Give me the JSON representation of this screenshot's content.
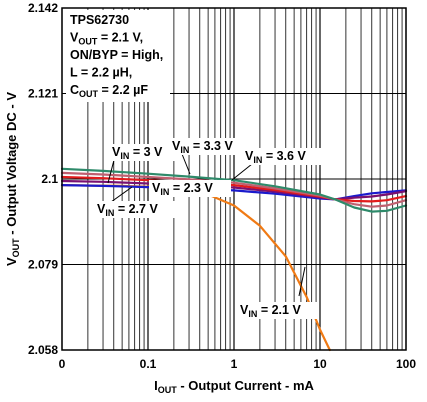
{
  "chart_data": {
    "type": "line",
    "x_scale": "log",
    "xlabel_main": "I",
    "xlabel_sub": "OUT",
    "xlabel_rest": " - Output Current - mA",
    "ylabel_main": "V",
    "ylabel_sub": "OUT",
    "ylabel_rest": " - Output Voltage DC - V",
    "xlim": [
      0.01,
      100
    ],
    "ylim": [
      2.058,
      2.142
    ],
    "x_tick_labels": [
      "0",
      "0.1",
      "1",
      "10",
      "100"
    ],
    "y_tick_labels": [
      "2.058",
      "2.079",
      "2.1",
      "2.121",
      "2.142"
    ],
    "grid": true,
    "conditions": [
      {
        "main": "TPS62730",
        "sub": "",
        "rest": ""
      },
      {
        "main": "V",
        "sub": "OUT",
        "rest": " = 2.1 V,"
      },
      {
        "main": "ON/BYP = High,",
        "sub": "",
        "rest": ""
      },
      {
        "main": "L = 2.2 µH,",
        "sub": "",
        "rest": ""
      },
      {
        "main": "C",
        "sub": "OUT",
        "rest": " = 2.2 µF"
      }
    ],
    "series": [
      {
        "name_main": "V",
        "name_sub": "IN",
        "name_rest": " = 2.1 V",
        "color": "#f07a14",
        "x": [
          0.01,
          0.02,
          0.05,
          0.1,
          0.2,
          0.5,
          1,
          2,
          4,
          7,
          10,
          13
        ],
        "y": [
          2.0985,
          2.0984,
          2.0983,
          2.0981,
          2.0976,
          2.0962,
          2.0935,
          2.0885,
          2.081,
          2.071,
          2.063,
          2.058
        ]
      },
      {
        "name_main": "V",
        "name_sub": "IN",
        "name_rest": " = 2.3 V",
        "color": "#1a1acc",
        "x": [
          0.01,
          0.03,
          0.1,
          0.3,
          1,
          3,
          10,
          15,
          25,
          40,
          60,
          100
        ],
        "y": [
          2.0985,
          2.0983,
          2.098,
          2.0977,
          2.0972,
          2.0964,
          2.0952,
          2.095,
          2.0958,
          2.0965,
          2.0968,
          2.0972
        ]
      },
      {
        "name_main": "V",
        "name_sub": "IN",
        "name_rest": " = 2.7 V",
        "color": "#7a1070",
        "x": [
          0.01,
          0.03,
          0.1,
          0.3,
          1,
          3,
          10,
          15,
          25,
          40,
          60,
          100
        ],
        "y": [
          2.0995,
          2.0993,
          2.0989,
          2.0985,
          2.0979,
          2.0969,
          2.0955,
          2.095,
          2.0954,
          2.0957,
          2.0962,
          2.097
        ]
      },
      {
        "name_main": "V",
        "name_sub": "IN",
        "name_rest": " = 3 V",
        "color": "#e21c1c",
        "x": [
          0.01,
          0.03,
          0.1,
          0.3,
          1,
          3,
          10,
          15,
          25,
          40,
          60,
          100
        ],
        "y": [
          2.1005,
          2.1002,
          2.0997,
          2.0992,
          2.0985,
          2.0973,
          2.0957,
          2.095,
          2.0946,
          2.0945,
          2.0948,
          2.0958
        ]
      },
      {
        "name_main": "V",
        "name_sub": "IN",
        "name_rest": " = 3.3 V",
        "color": "#c06070",
        "x": [
          0.01,
          0.03,
          0.1,
          0.3,
          1,
          3,
          10,
          15,
          25,
          40,
          60,
          100
        ],
        "y": [
          2.1015,
          2.1011,
          2.1005,
          2.0999,
          2.0991,
          2.0977,
          2.0959,
          2.095,
          2.0938,
          2.0932,
          2.0935,
          2.0948
        ]
      },
      {
        "name_main": "V",
        "name_sub": "IN",
        "name_rest": " = 3.6 V",
        "color": "#2e8a6a",
        "x": [
          0.01,
          0.03,
          0.1,
          0.3,
          1,
          3,
          10,
          15,
          25,
          40,
          60,
          100
        ],
        "y": [
          2.1025,
          2.102,
          2.1013,
          2.1006,
          2.0997,
          2.0982,
          2.0962,
          2.095,
          2.093,
          2.092,
          2.0922,
          2.0935
        ]
      }
    ]
  }
}
